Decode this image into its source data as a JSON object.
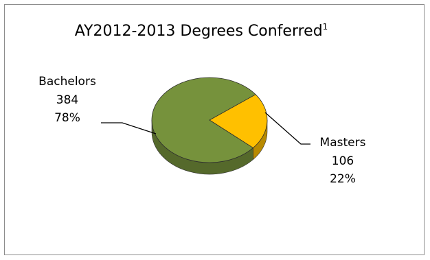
{
  "chart_data": {
    "type": "pie",
    "title": "AY2012-2013 Degrees Conferred",
    "title_superscript": "1",
    "style": "3d",
    "slices": [
      {
        "label": "Bachelors",
        "value": 384,
        "percent_label": "78%",
        "color": "#76923c"
      },
      {
        "label": "Masters",
        "value": 106,
        "percent_label": "22%",
        "color": "#ffc000"
      }
    ],
    "legend": "none"
  }
}
